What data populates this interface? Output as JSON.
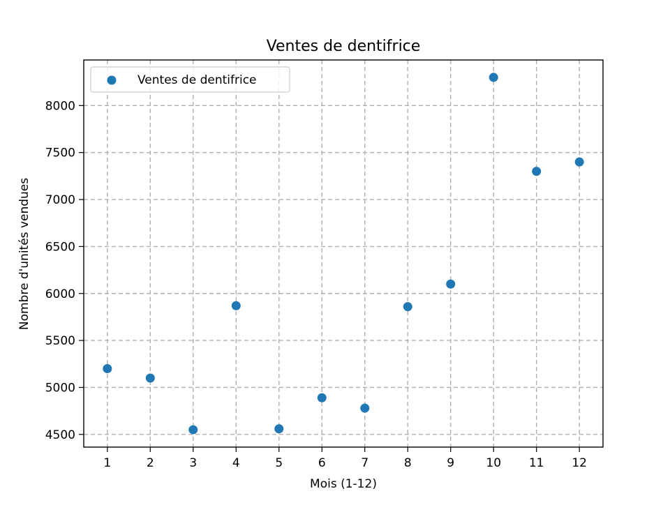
{
  "chart_data": {
    "type": "scatter",
    "title": "Ventes de dentifrice",
    "xlabel": "Mois (1-12)",
    "ylabel": "Nombre d'unités vendues",
    "xlim": [
      0.45,
      12.55
    ],
    "ylim": [
      4365,
      8485
    ],
    "x_ticks": [
      1,
      2,
      3,
      4,
      5,
      6,
      7,
      8,
      9,
      10,
      11,
      12
    ],
    "y_ticks": [
      4500,
      5000,
      5500,
      6000,
      6500,
      7000,
      7500,
      8000
    ],
    "grid": true,
    "legend_position": "upper-left",
    "series": [
      {
        "name": "Ventes de dentifrice",
        "color": "#1f77b4",
        "x": [
          1,
          2,
          3,
          4,
          5,
          6,
          7,
          8,
          9,
          10,
          11,
          12
        ],
        "y": [
          5200,
          5100,
          4550,
          5870,
          4560,
          4890,
          4780,
          5860,
          6100,
          8300,
          7300,
          7400
        ]
      }
    ]
  }
}
